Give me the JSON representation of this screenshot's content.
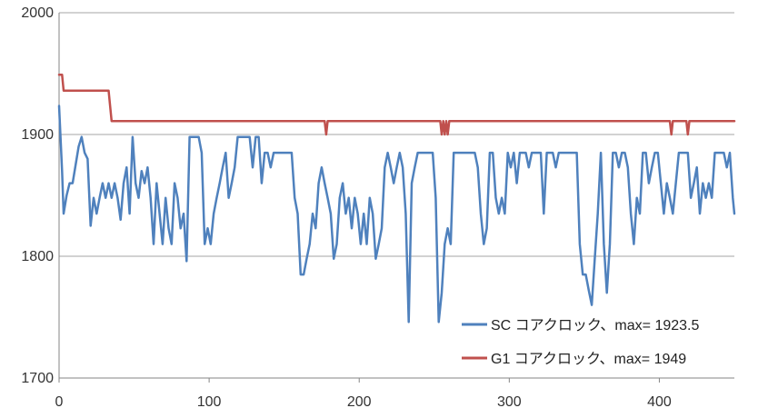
{
  "chart_data": {
    "type": "line",
    "xlim": [
      0,
      450
    ],
    "ylim": [
      1700,
      2000
    ],
    "x_ticks": [
      0,
      100,
      200,
      300,
      400
    ],
    "y_ticks": [
      1700,
      1800,
      1900,
      2000
    ],
    "grid": "horizontal",
    "legend_position": "bottom-right",
    "series": [
      {
        "name": "SC コアクロック、max= 1923.5",
        "color": "#4F81BD",
        "points": [
          [
            0,
            1923.5
          ],
          [
            2,
            1870
          ],
          [
            3,
            1835
          ],
          [
            5,
            1850
          ],
          [
            7,
            1860
          ],
          [
            9,
            1860
          ],
          [
            11,
            1875
          ],
          [
            13,
            1890
          ],
          [
            15,
            1898
          ],
          [
            17,
            1885
          ],
          [
            19,
            1880
          ],
          [
            21,
            1825
          ],
          [
            23,
            1848
          ],
          [
            25,
            1835
          ],
          [
            27,
            1848
          ],
          [
            29,
            1860
          ],
          [
            31,
            1848
          ],
          [
            33,
            1860
          ],
          [
            35,
            1848
          ],
          [
            37,
            1860
          ],
          [
            39,
            1848
          ],
          [
            41,
            1830
          ],
          [
            43,
            1860
          ],
          [
            45,
            1873
          ],
          [
            47,
            1835
          ],
          [
            49,
            1898
          ],
          [
            51,
            1860
          ],
          [
            53,
            1848
          ],
          [
            55,
            1870
          ],
          [
            57,
            1860
          ],
          [
            59,
            1873
          ],
          [
            61,
            1848
          ],
          [
            63,
            1810
          ],
          [
            65,
            1860
          ],
          [
            67,
            1835
          ],
          [
            69,
            1810
          ],
          [
            71,
            1848
          ],
          [
            73,
            1823
          ],
          [
            75,
            1810
          ],
          [
            77,
            1860
          ],
          [
            79,
            1848
          ],
          [
            81,
            1823
          ],
          [
            83,
            1835
          ],
          [
            85,
            1796
          ],
          [
            87,
            1898
          ],
          [
            89,
            1898
          ],
          [
            91,
            1898
          ],
          [
            93,
            1898
          ],
          [
            95,
            1885
          ],
          [
            97,
            1810
          ],
          [
            99,
            1823
          ],
          [
            101,
            1810
          ],
          [
            103,
            1835
          ],
          [
            105,
            1848
          ],
          [
            107,
            1860
          ],
          [
            109,
            1873
          ],
          [
            111,
            1885
          ],
          [
            113,
            1848
          ],
          [
            115,
            1860
          ],
          [
            117,
            1873
          ],
          [
            119,
            1898
          ],
          [
            121,
            1898
          ],
          [
            123,
            1898
          ],
          [
            125,
            1898
          ],
          [
            127,
            1898
          ],
          [
            129,
            1873
          ],
          [
            131,
            1898
          ],
          [
            133,
            1898
          ],
          [
            135,
            1860
          ],
          [
            137,
            1885
          ],
          [
            139,
            1885
          ],
          [
            141,
            1873
          ],
          [
            143,
            1885
          ],
          [
            145,
            1885
          ],
          [
            147,
            1885
          ],
          [
            149,
            1885
          ],
          [
            151,
            1885
          ],
          [
            153,
            1885
          ],
          [
            155,
            1885
          ],
          [
            157,
            1848
          ],
          [
            159,
            1835
          ],
          [
            161,
            1785
          ],
          [
            163,
            1785
          ],
          [
            165,
            1798
          ],
          [
            167,
            1810
          ],
          [
            169,
            1835
          ],
          [
            171,
            1823
          ],
          [
            173,
            1860
          ],
          [
            175,
            1873
          ],
          [
            177,
            1860
          ],
          [
            179,
            1848
          ],
          [
            181,
            1835
          ],
          [
            183,
            1798
          ],
          [
            185,
            1810
          ],
          [
            187,
            1848
          ],
          [
            189,
            1860
          ],
          [
            191,
            1835
          ],
          [
            193,
            1848
          ],
          [
            195,
            1823
          ],
          [
            197,
            1848
          ],
          [
            199,
            1835
          ],
          [
            201,
            1810
          ],
          [
            203,
            1835
          ],
          [
            205,
            1810
          ],
          [
            207,
            1848
          ],
          [
            209,
            1835
          ],
          [
            211,
            1798
          ],
          [
            213,
            1810
          ],
          [
            215,
            1823
          ],
          [
            217,
            1873
          ],
          [
            219,
            1885
          ],
          [
            221,
            1873
          ],
          [
            223,
            1860
          ],
          [
            225,
            1873
          ],
          [
            227,
            1885
          ],
          [
            229,
            1873
          ],
          [
            231,
            1835
          ],
          [
            233,
            1746
          ],
          [
            235,
            1860
          ],
          [
            237,
            1873
          ],
          [
            239,
            1885
          ],
          [
            241,
            1885
          ],
          [
            243,
            1885
          ],
          [
            245,
            1885
          ],
          [
            247,
            1885
          ],
          [
            249,
            1885
          ],
          [
            251,
            1848
          ],
          [
            253,
            1746
          ],
          [
            255,
            1770
          ],
          [
            257,
            1810
          ],
          [
            259,
            1823
          ],
          [
            261,
            1810
          ],
          [
            263,
            1885
          ],
          [
            265,
            1885
          ],
          [
            267,
            1885
          ],
          [
            269,
            1885
          ],
          [
            271,
            1885
          ],
          [
            273,
            1885
          ],
          [
            275,
            1885
          ],
          [
            277,
            1885
          ],
          [
            279,
            1873
          ],
          [
            281,
            1835
          ],
          [
            283,
            1810
          ],
          [
            285,
            1823
          ],
          [
            287,
            1885
          ],
          [
            289,
            1885
          ],
          [
            291,
            1848
          ],
          [
            293,
            1835
          ],
          [
            295,
            1848
          ],
          [
            297,
            1835
          ],
          [
            299,
            1885
          ],
          [
            301,
            1873
          ],
          [
            303,
            1885
          ],
          [
            305,
            1860
          ],
          [
            307,
            1885
          ],
          [
            309,
            1885
          ],
          [
            311,
            1885
          ],
          [
            313,
            1873
          ],
          [
            315,
            1885
          ],
          [
            317,
            1885
          ],
          [
            319,
            1885
          ],
          [
            321,
            1885
          ],
          [
            323,
            1835
          ],
          [
            325,
            1885
          ],
          [
            327,
            1885
          ],
          [
            329,
            1885
          ],
          [
            331,
            1873
          ],
          [
            333,
            1885
          ],
          [
            335,
            1885
          ],
          [
            337,
            1885
          ],
          [
            339,
            1885
          ],
          [
            341,
            1885
          ],
          [
            343,
            1885
          ],
          [
            345,
            1885
          ],
          [
            347,
            1810
          ],
          [
            349,
            1785
          ],
          [
            351,
            1785
          ],
          [
            353,
            1772
          ],
          [
            355,
            1760
          ],
          [
            357,
            1798
          ],
          [
            359,
            1835
          ],
          [
            361,
            1885
          ],
          [
            363,
            1810
          ],
          [
            365,
            1770
          ],
          [
            367,
            1810
          ],
          [
            369,
            1885
          ],
          [
            371,
            1885
          ],
          [
            373,
            1873
          ],
          [
            375,
            1885
          ],
          [
            377,
            1885
          ],
          [
            379,
            1873
          ],
          [
            381,
            1835
          ],
          [
            383,
            1810
          ],
          [
            385,
            1848
          ],
          [
            387,
            1835
          ],
          [
            389,
            1885
          ],
          [
            391,
            1885
          ],
          [
            393,
            1860
          ],
          [
            395,
            1873
          ],
          [
            397,
            1885
          ],
          [
            399,
            1885
          ],
          [
            401,
            1860
          ],
          [
            403,
            1835
          ],
          [
            405,
            1860
          ],
          [
            407,
            1848
          ],
          [
            409,
            1835
          ],
          [
            411,
            1860
          ],
          [
            413,
            1885
          ],
          [
            415,
            1885
          ],
          [
            417,
            1885
          ],
          [
            419,
            1885
          ],
          [
            421,
            1848
          ],
          [
            423,
            1860
          ],
          [
            425,
            1873
          ],
          [
            427,
            1835
          ],
          [
            429,
            1860
          ],
          [
            431,
            1848
          ],
          [
            433,
            1860
          ],
          [
            435,
            1848
          ],
          [
            437,
            1885
          ],
          [
            439,
            1885
          ],
          [
            441,
            1885
          ],
          [
            443,
            1885
          ],
          [
            445,
            1873
          ],
          [
            447,
            1885
          ],
          [
            449,
            1848
          ],
          [
            450,
            1835
          ]
        ]
      },
      {
        "name": "G1 コアクロック、max= 1949",
        "color": "#C0504D",
        "points": [
          [
            0,
            1949
          ],
          [
            2,
            1949
          ],
          [
            3,
            1936
          ],
          [
            4,
            1936
          ],
          [
            10,
            1936
          ],
          [
            20,
            1936
          ],
          [
            30,
            1936
          ],
          [
            33,
            1936
          ],
          [
            35,
            1911
          ],
          [
            50,
            1911
          ],
          [
            100,
            1911
          ],
          [
            150,
            1911
          ],
          [
            177,
            1911
          ],
          [
            178,
            1900
          ],
          [
            179,
            1911
          ],
          [
            180,
            1911
          ],
          [
            250,
            1911
          ],
          [
            254,
            1911
          ],
          [
            255,
            1900
          ],
          [
            256,
            1911
          ],
          [
            257,
            1900
          ],
          [
            258,
            1911
          ],
          [
            259,
            1900
          ],
          [
            260,
            1911
          ],
          [
            261,
            1911
          ],
          [
            350,
            1911
          ],
          [
            407,
            1911
          ],
          [
            408,
            1900
          ],
          [
            409,
            1911
          ],
          [
            410,
            1911
          ],
          [
            418,
            1911
          ],
          [
            419,
            1900
          ],
          [
            420,
            1911
          ],
          [
            421,
            1911
          ],
          [
            450,
            1911
          ]
        ]
      }
    ]
  }
}
